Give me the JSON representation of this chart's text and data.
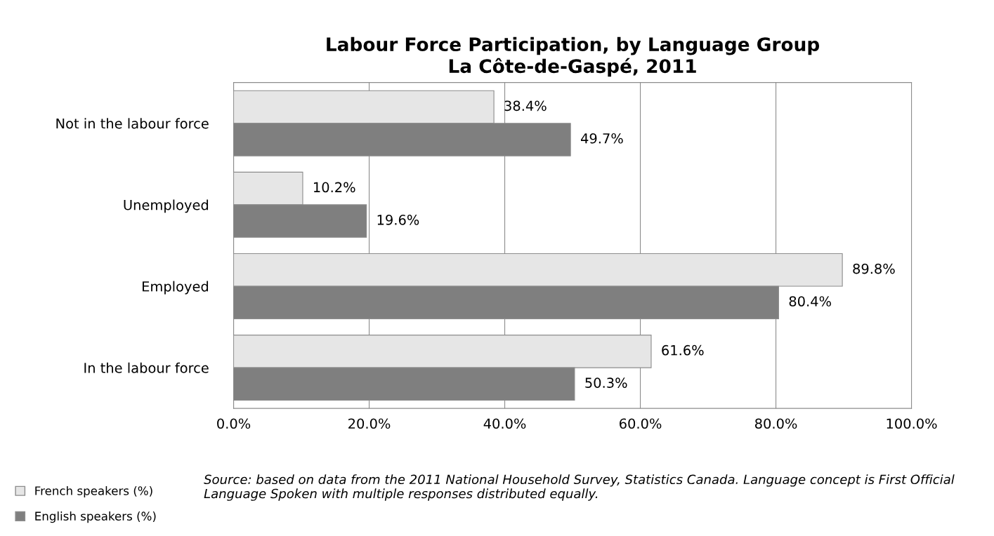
{
  "chart_data": {
    "type": "bar",
    "orientation": "horizontal",
    "title": "Labour Force Participation, by Language Group\nLa Côte-de-Gaspé, 2011",
    "categories": [
      "Not in the labour force",
      "Unemployed",
      "Employed",
      "In the labour force"
    ],
    "series": [
      {
        "name": "French speakers (%)",
        "color": "#e6e6e6",
        "values": [
          38.4,
          10.2,
          89.8,
          61.6
        ],
        "value_labels": [
          "38.4%",
          "10.2%",
          "89.8%",
          "61.6%"
        ]
      },
      {
        "name": "English speakers (%)",
        "color": "#7f7f7f",
        "values": [
          49.7,
          19.6,
          80.4,
          50.3
        ],
        "value_labels": [
          "49.7%",
          "19.6%",
          "80.4%",
          "50.3%"
        ]
      }
    ],
    "xlim": [
      0,
      100
    ],
    "xticks": [
      {
        "value": 0,
        "label": "0.0%"
      },
      {
        "value": 20,
        "label": "20.0%"
      },
      {
        "value": 40,
        "label": "40.0%"
      },
      {
        "value": 60,
        "label": "60.0%"
      },
      {
        "value": 80,
        "label": "80.0%"
      },
      {
        "value": 100,
        "label": "100.0%"
      }
    ],
    "grid": "x",
    "legend": "bottom left",
    "annotations": [
      "Source: based on data from the 2011 National Household Survey, Statistics Canada. Language concept is First Official Language Spoken with multiple responses distributed equally."
    ]
  }
}
